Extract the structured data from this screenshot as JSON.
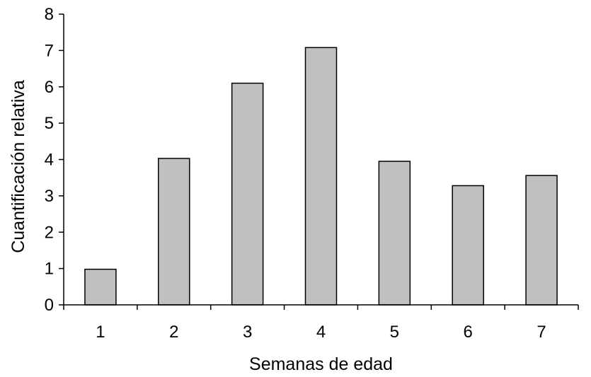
{
  "chart_data": {
    "type": "bar",
    "categories": [
      "1",
      "2",
      "3",
      "4",
      "5",
      "6",
      "7"
    ],
    "values": [
      0.98,
      4.03,
      6.1,
      7.08,
      3.95,
      3.28,
      3.56
    ],
    "xlabel": "Semanas de edad",
    "ylabel": "Cuantificación relativa",
    "ylim": [
      0,
      8
    ],
    "yticks": [
      "0",
      "1",
      "2",
      "3",
      "4",
      "5",
      "6",
      "7",
      "8"
    ],
    "grid": false,
    "legend": "none",
    "bar_color": "#c0c0c0",
    "bar_edge_color": "#000000"
  }
}
